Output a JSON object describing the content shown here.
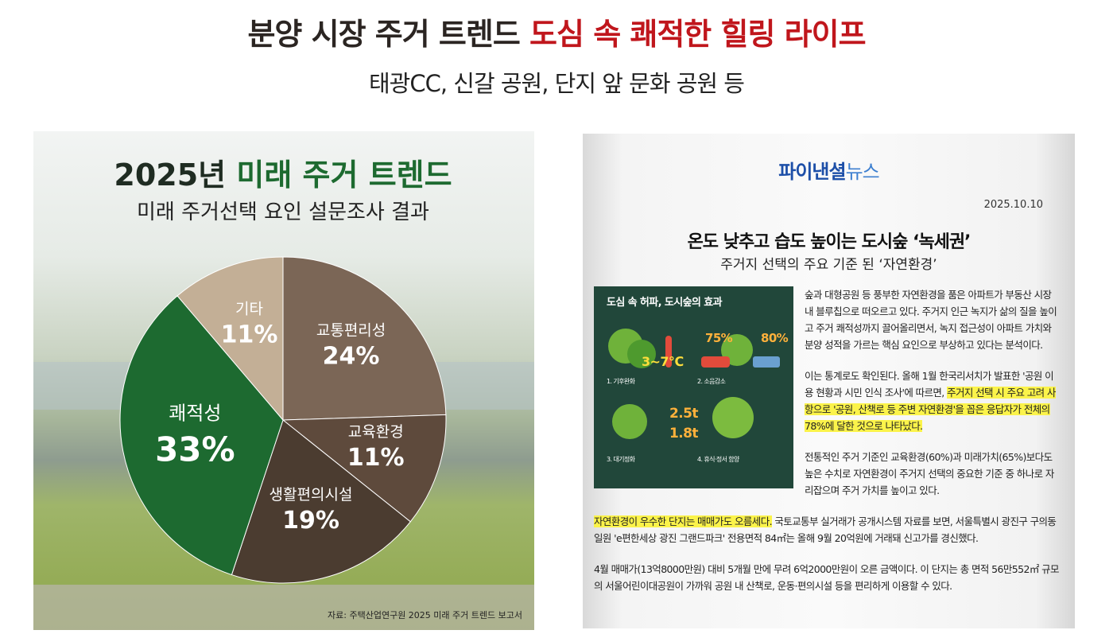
{
  "header": {
    "title": [
      "분양 시장 주거 트렌드",
      "도심 속 쾌적한 힐링 라이프"
    ],
    "subtitle": "태광CC, 신갈 공원, 단지 앞 문화 공원 등"
  },
  "chart_data": {
    "type": "pie",
    "title": [
      "2025년",
      "미래 주거 트렌드"
    ],
    "subtitle": "미래 주거선택 요인 설문조사 결과",
    "categories": [
      "교통편리성",
      "교육환경",
      "생활편의시설",
      "쾌적성",
      "기타"
    ],
    "values": [
      24,
      11,
      19,
      33,
      11
    ],
    "value_labels": [
      "24%",
      "11%",
      "19%",
      "33%",
      "11%"
    ],
    "colors": [
      "#7b6656",
      "#5e4a3c",
      "#4b3c30",
      "#1d6a30",
      "#c3af96"
    ],
    "source": "자료: 주택산업연구원 2025 미래 주거 트렌드 보고서"
  },
  "article": {
    "logo": [
      "파이낸셜",
      "뉴스"
    ],
    "date": "2025.10.10",
    "headline": "온도 낮추고 습도 높이는 도시숲 ‘녹세권’",
    "subheadline": "주거지 선택의 주요 기준 된 ‘자연환경’",
    "image": {
      "title": "도심 속 허파, 도시숲의 효과",
      "figures": [
        "3~7℃",
        "75%",
        "80%",
        "2.5t",
        "1.8t"
      ],
      "captions": [
        "1. 기후완화",
        "2. 소음감소",
        "3. 대기정화",
        "4. 휴식·정서 함양"
      ]
    },
    "paragraphs": [
      [
        {
          "text": "숲과 대형공원 등 풍부한 자연환경을 품은 아파트가 부동산 시장 내 블루칩으로 떠오르고 있다. 주거지 인근 녹지가 삶의 질을 높이고 주거 쾌적성까지 끌어올리면서, 녹지 접근성이 아파트 가치와 분양 성적을 가르는 핵심 요인으로 부상하고 있다는 분석이다.",
          "highlight": false
        }
      ],
      [
        {
          "text": "이는 통계로도 확인된다. 올해 1월 한국리서치가 발표한 '공원 이용 현황과 시민 인식 조사'에 따르면, ",
          "highlight": false
        },
        {
          "text": "주거지 선택 시 주요 고려 사항으로 '공원, 산책로 등 주변 자연환경'을 꼽은 응답자가 전체의 78%에 달한 것으로 나타났다.",
          "highlight": true
        }
      ],
      [
        {
          "text": "전통적인 주거 기준인 교육환경(60%)과 미래가치(65%)보다도 높은 수치로 자연환경이 주거지 선택의 중요한 기준 중 하나로 자리잡으며 주거 가치를 높이고 있다.",
          "highlight": false
        }
      ],
      [
        {
          "text": "자연환경이 우수한 단지는 매매가도 오름세다.",
          "highlight": true
        },
        {
          "text": " 국토교통부 실거래가 공개시스템 자료를 보면, 서울특별시 광진구 구의동 일원 'e편한세상 광진 그랜드파크' 전용면적 84㎡는 올해 9월 20억원에 거래돼 신고가를 경신했다.",
          "highlight": false
        }
      ],
      [
        {
          "text": "4월 매매가(13억8000만원) 대비 5개월 만에 무려 6억2000만원이 오른 금액이다. 이 단지는 총 면적 56만552㎡ 규모의 서울어린이대공원이 가까워 공원 내 산책로, 운동·편의시설 등을 편리하게 이용할 수 있다.",
          "highlight": false
        }
      ]
    ]
  }
}
